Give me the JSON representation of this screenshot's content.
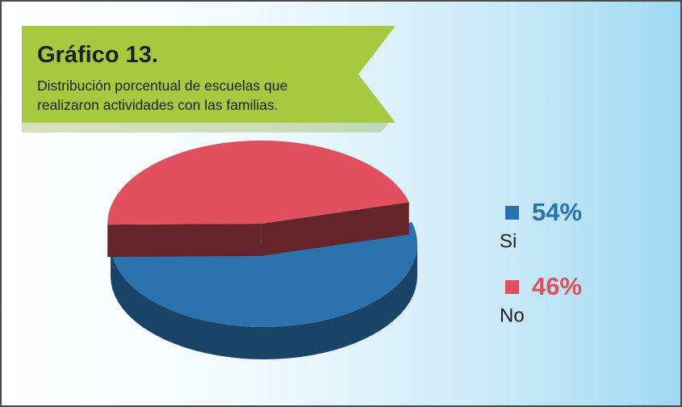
{
  "chart_data": {
    "type": "pie3d",
    "title": "Gráfico 13.",
    "subtitle": "Distribución porcentual de escuelas que realizaron actividades con las familias.",
    "categories": [
      "Si",
      "No"
    ],
    "values": [
      54,
      46
    ],
    "value_labels": [
      "54%",
      "46%"
    ],
    "colors": [
      "#2a72ae",
      "#e0505e"
    ]
  }
}
